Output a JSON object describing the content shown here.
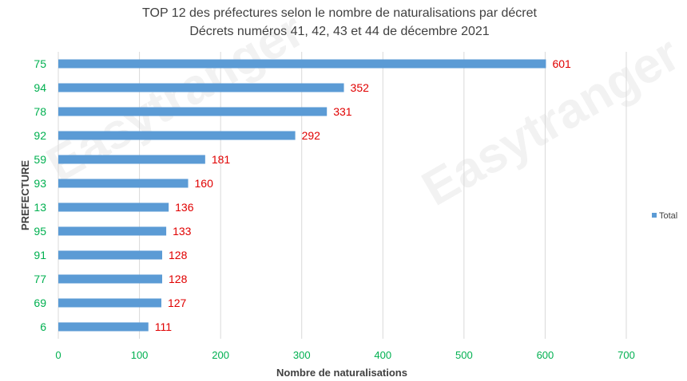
{
  "chart_data": {
    "type": "bar",
    "orientation": "horizontal",
    "title": "TOP 12 des préfectures selon le nombre de naturalisations par décret",
    "subtitle": "Décrets numéros 41, 42, 43 et 44 de décembre 2021",
    "xlabel": "Nombre de naturalisations",
    "ylabel": "PREFECTURE",
    "categories": [
      "75",
      "94",
      "78",
      "92",
      "59",
      "93",
      "13",
      "95",
      "91",
      "77",
      "69",
      "6"
    ],
    "series": [
      {
        "name": "Total",
        "values": [
          601,
          352,
          331,
          292,
          181,
          160,
          136,
          133,
          128,
          128,
          127,
          111
        ]
      }
    ],
    "xlim": [
      0,
      700
    ],
    "x_ticks": [
      "0",
      "100",
      "200",
      "300",
      "400",
      "500",
      "600",
      "700"
    ],
    "grid": true,
    "legend_position": "right",
    "colors": {
      "bar": "#5b9bd5",
      "category_labels": "#00b050",
      "tick_labels": "#00b050",
      "data_labels": "#e00000",
      "gridlines": "#d9d9d9"
    }
  },
  "watermark": {
    "text": "Easytranger"
  }
}
